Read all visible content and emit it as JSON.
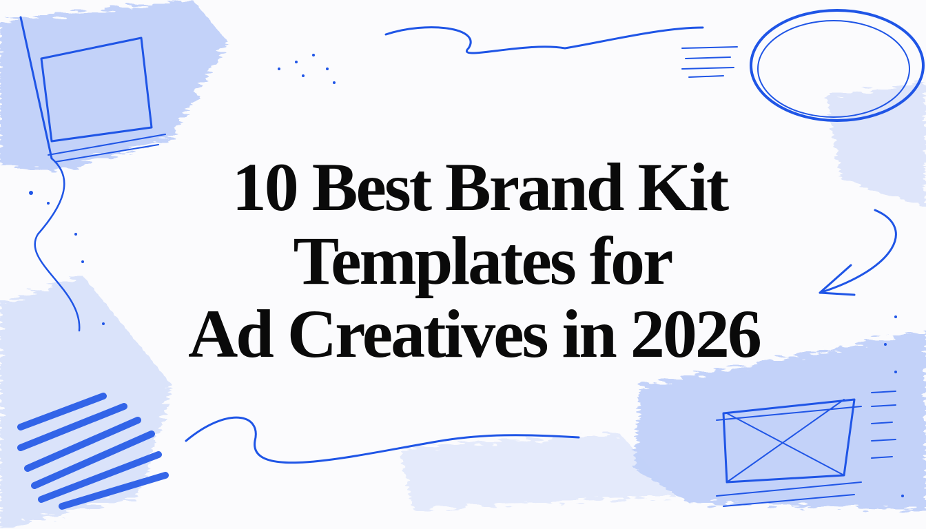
{
  "title": {
    "lines": [
      "10 Best Brand Kit",
      "Templates for",
      "Ad Creatives in 2026"
    ]
  }
}
